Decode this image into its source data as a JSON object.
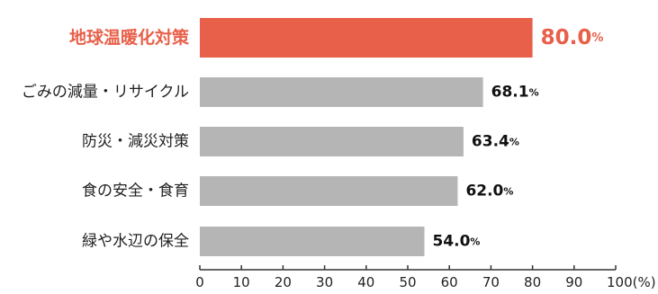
{
  "chart_data": {
    "type": "bar",
    "orientation": "horizontal",
    "categories": [
      "地球温暖化対策",
      "ごみの減量・リサイクル",
      "防災・減災対策",
      "食の安全・食育",
      "緑や水辺の保全"
    ],
    "values": [
      80.0,
      68.1,
      63.4,
      62.0,
      54.0
    ],
    "value_labels": [
      "80.0",
      "68.1",
      "63.4",
      "62.0",
      "54.0"
    ],
    "value_unit": "%",
    "highlight_index": 0,
    "xlim": [
      0,
      100
    ],
    "x_ticks": [
      "0",
      "10",
      "20",
      "30",
      "40",
      "50",
      "60",
      "70",
      "80",
      "90",
      "100(%)"
    ],
    "grid": false,
    "colors": {
      "highlight": "#e8604a",
      "bar": "#b5b5b5",
      "highlight_text": "#e8604a",
      "axis": "#333333"
    }
  }
}
